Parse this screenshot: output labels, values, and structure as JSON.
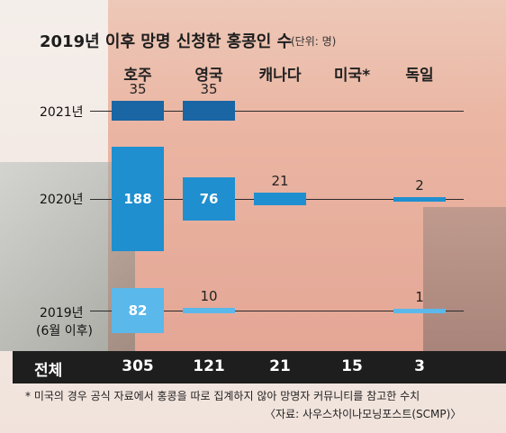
{
  "chart_data": {
    "type": "bar",
    "title": "2019년 이후 망명 신청한 홍콩인 수",
    "unit_note": "(단위: 명)",
    "categories": [
      "호주",
      "영국",
      "캐나다",
      "미국*",
      "독일"
    ],
    "series": [
      {
        "name": "2021년",
        "values": [
          35,
          35,
          null,
          null,
          null
        ]
      },
      {
        "name": "2020년",
        "values": [
          188,
          76,
          21,
          null,
          2
        ]
      },
      {
        "name": "2019년 (6월 이후)",
        "values": [
          82,
          10,
          null,
          null,
          1
        ]
      }
    ],
    "row_labels": [
      "2021년",
      "2020년",
      "2019년",
      "(6월 이후)"
    ],
    "totals": {
      "label": "전체",
      "values": [
        "305",
        "121",
        "21",
        "15",
        "3"
      ]
    },
    "colors": {
      "2021": "#1a65a3",
      "2020": "#1f8fd0",
      "2019": "#5bb8ea",
      "total_bar": "#1e1e1e"
    }
  },
  "footnote": "* 미국의 경우 공식 자료에서 홍콩을 따로 집계하지 않아 망명자 커뮤니티를 참고한 수치",
  "source": "〈자료: 사우스차이나모닝포스트(SCMP)〉"
}
